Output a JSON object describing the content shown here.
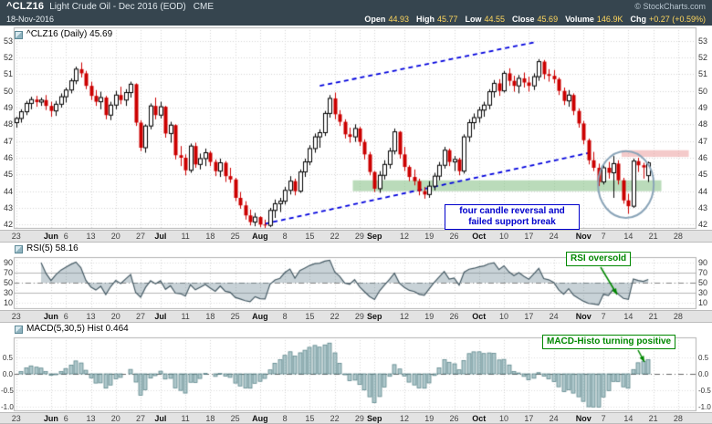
{
  "header": {
    "symbol": "^CLZ16",
    "description": "Light Crude Oil - Dec 2016 (EOD)",
    "exchange": "CME",
    "copyright": "© StockCharts.com",
    "date": "18-Nov-2016",
    "quote": [
      {
        "label": "Open",
        "value": "44.93"
      },
      {
        "label": "High",
        "value": "45.77"
      },
      {
        "label": "Low",
        "value": "44.55"
      },
      {
        "label": "Close",
        "value": "45.69"
      },
      {
        "label": "Volume",
        "value": "146.9K"
      },
      {
        "label": "Chg",
        "value": "+0.27 (+0.59%)"
      }
    ]
  },
  "panels": {
    "price": {
      "label": "^CLZ16 (Daily) 45.69"
    },
    "rsi": {
      "label": "RSI(5) 58.16"
    },
    "macd": {
      "label": "MACD(5,30,5) Hist 0.464"
    }
  },
  "annotations": {
    "reversal": {
      "text": "four candle reversal and failed support break",
      "color": "#0000cc"
    },
    "rsi": {
      "text": "RSI oversold",
      "color": "#008800"
    },
    "macd": {
      "text": "MACD-Histo turning positive",
      "color": "#008800"
    }
  },
  "colors": {
    "header_bg": "#36454f",
    "value_accent": "#ffd75e",
    "candle_up": "#000000",
    "candle_down": "#cc0000",
    "trendline": "#0000dd",
    "support_zone": "rgba(130,190,130,0.55)",
    "resistance_zone": "rgba(233,150,150,0.5)",
    "ellipse": "#8aa4b8",
    "rsi_line": "#455a64",
    "rsi_fill": "rgba(96,125,139,0.35)",
    "macd_bar_fill": "rgba(121,163,168,0.6)",
    "macd_bar_stroke": "#558086",
    "grid": "#d4d4d4"
  },
  "x_axis": {
    "start_date": "23-May-2016",
    "end_date": "28-Nov-2016",
    "ticks": [
      {
        "label": "23",
        "i": 0
      },
      {
        "label": "Jun",
        "i": 7,
        "month": true
      },
      {
        "label": "6",
        "i": 10
      },
      {
        "label": "13",
        "i": 15
      },
      {
        "label": "20",
        "i": 20
      },
      {
        "label": "27",
        "i": 25
      },
      {
        "label": "Jul",
        "i": 29,
        "month": true
      },
      {
        "label": "11",
        "i": 34
      },
      {
        "label": "18",
        "i": 39
      },
      {
        "label": "25",
        "i": 44
      },
      {
        "label": "Aug",
        "i": 49,
        "month": true
      },
      {
        "label": "8",
        "i": 54
      },
      {
        "label": "15",
        "i": 59
      },
      {
        "label": "22",
        "i": 64
      },
      {
        "label": "29",
        "i": 69
      },
      {
        "label": "Sep",
        "i": 72,
        "month": true
      },
      {
        "label": "12",
        "i": 78
      },
      {
        "label": "19",
        "i": 83
      },
      {
        "label": "26",
        "i": 88
      },
      {
        "label": "Oct",
        "i": 93,
        "month": true
      },
      {
        "label": "10",
        "i": 98
      },
      {
        "label": "17",
        "i": 103
      },
      {
        "label": "24",
        "i": 108
      },
      {
        "label": "Nov",
        "i": 114,
        "month": true
      },
      {
        "label": "7",
        "i": 118
      },
      {
        "label": "14",
        "i": 123
      },
      {
        "label": "21",
        "i": 128
      },
      {
        "label": "28",
        "i": 133
      }
    ]
  },
  "chart_data": [
    {
      "type": "candlestick",
      "title": "^CLZ16 (Daily)",
      "last_close": 45.69,
      "ylim": [
        41.8,
        53.8
      ],
      "y_ticks": [
        42,
        43,
        44,
        45,
        46,
        47,
        48,
        49,
        50,
        51,
        52,
        53
      ],
      "legend_position": "top-left",
      "grid": true,
      "ohlc": [
        [
          48.1,
          48.45,
          47.8,
          48.35
        ],
        [
          48.35,
          48.9,
          48.1,
          48.75
        ],
        [
          48.75,
          49.4,
          48.55,
          49.25
        ],
        [
          49.25,
          49.65,
          48.9,
          49.48
        ],
        [
          49.48,
          49.7,
          49.05,
          49.33
        ],
        [
          49.33,
          49.6,
          49.1,
          49.45
        ],
        [
          49.45,
          49.75,
          48.85,
          49.1
        ],
        [
          49.1,
          49.35,
          48.45,
          48.8
        ],
        [
          48.8,
          49.4,
          48.5,
          49.2
        ],
        [
          49.2,
          49.85,
          49.0,
          49.65
        ],
        [
          49.65,
          50.2,
          49.3,
          50.05
        ],
        [
          50.05,
          50.75,
          49.85,
          50.6
        ],
        [
          50.6,
          51.45,
          50.4,
          51.3
        ],
        [
          51.3,
          51.7,
          50.8,
          51.05
        ],
        [
          51.05,
          51.2,
          50.1,
          50.3
        ],
        [
          50.3,
          50.55,
          49.45,
          49.7
        ],
        [
          49.7,
          50.05,
          49.1,
          49.35
        ],
        [
          49.35,
          49.95,
          48.9,
          49.6
        ],
        [
          49.6,
          49.7,
          48.3,
          48.55
        ],
        [
          48.55,
          49.35,
          48.25,
          49.15
        ],
        [
          49.15,
          50.0,
          48.9,
          49.75
        ],
        [
          49.75,
          50.25,
          49.2,
          49.45
        ],
        [
          49.45,
          50.1,
          49.1,
          49.9
        ],
        [
          49.9,
          50.55,
          49.6,
          50.4
        ],
        [
          50.4,
          50.45,
          47.9,
          48.1
        ],
        [
          48.1,
          48.25,
          46.4,
          46.6
        ],
        [
          46.6,
          48.0,
          46.3,
          47.9
        ],
        [
          47.9,
          49.25,
          47.7,
          49.1
        ],
        [
          49.1,
          49.6,
          48.3,
          48.55
        ],
        [
          48.55,
          49.35,
          48.35,
          49.05
        ],
        [
          49.05,
          49.1,
          47.2,
          47.45
        ],
        [
          47.45,
          48.15,
          46.9,
          47.95
        ],
        [
          47.95,
          48.0,
          45.9,
          46.15
        ],
        [
          46.15,
          46.7,
          45.5,
          46.0
        ],
        [
          46.0,
          46.2,
          44.95,
          45.25
        ],
        [
          45.25,
          46.85,
          45.1,
          46.7
        ],
        [
          46.7,
          46.9,
          45.4,
          45.6
        ],
        [
          45.6,
          46.25,
          45.3,
          45.95
        ],
        [
          45.95,
          46.55,
          45.5,
          46.3
        ],
        [
          46.3,
          46.4,
          45.5,
          45.75
        ],
        [
          45.75,
          45.9,
          44.9,
          45.2
        ],
        [
          45.2,
          45.95,
          44.85,
          45.7
        ],
        [
          45.7,
          45.8,
          44.55,
          44.9
        ],
        [
          44.9,
          45.4,
          44.5,
          44.7
        ],
        [
          44.7,
          44.8,
          43.4,
          43.6
        ],
        [
          43.6,
          43.95,
          42.95,
          43.15
        ],
        [
          43.15,
          43.4,
          42.3,
          42.55
        ],
        [
          42.55,
          42.9,
          41.95,
          42.15
        ],
        [
          42.15,
          42.7,
          41.9,
          42.45
        ],
        [
          42.45,
          42.5,
          41.85,
          42.0
        ],
        [
          42.0,
          42.3,
          41.8,
          41.95
        ],
        [
          41.95,
          43.0,
          41.85,
          42.85
        ],
        [
          42.85,
          43.5,
          42.4,
          43.25
        ],
        [
          43.25,
          43.6,
          42.75,
          43.4
        ],
        [
          43.4,
          44.25,
          43.2,
          44.05
        ],
        [
          44.05,
          44.9,
          43.8,
          44.6
        ],
        [
          44.6,
          44.75,
          43.75,
          44.0
        ],
        [
          44.0,
          45.3,
          43.9,
          45.15
        ],
        [
          45.15,
          45.95,
          44.85,
          45.75
        ],
        [
          45.75,
          46.75,
          45.55,
          46.55
        ],
        [
          46.55,
          47.45,
          46.3,
          47.25
        ],
        [
          47.25,
          47.7,
          46.6,
          47.5
        ],
        [
          47.5,
          48.8,
          47.3,
          48.65
        ],
        [
          48.65,
          49.75,
          48.4,
          49.55
        ],
        [
          49.55,
          49.9,
          48.3,
          48.6
        ],
        [
          48.6,
          48.85,
          47.9,
          48.15
        ],
        [
          48.15,
          48.3,
          47.15,
          47.4
        ],
        [
          47.4,
          47.8,
          46.9,
          47.25
        ],
        [
          47.25,
          48.0,
          46.95,
          47.75
        ],
        [
          47.75,
          47.85,
          46.7,
          46.95
        ],
        [
          46.95,
          47.1,
          45.9,
          46.2
        ],
        [
          46.2,
          46.35,
          44.95,
          45.15
        ],
        [
          45.15,
          45.2,
          43.95,
          44.15
        ],
        [
          44.15,
          45.2,
          43.9,
          44.95
        ],
        [
          44.95,
          45.85,
          44.7,
          45.6
        ],
        [
          45.6,
          46.6,
          45.35,
          46.4
        ],
        [
          46.4,
          47.75,
          46.2,
          47.55
        ],
        [
          47.55,
          47.6,
          45.95,
          46.2
        ],
        [
          46.2,
          46.65,
          45.2,
          45.45
        ],
        [
          45.45,
          45.55,
          44.6,
          44.85
        ],
        [
          44.85,
          45.3,
          44.35,
          44.6
        ],
        [
          44.6,
          44.75,
          43.75,
          44.0
        ],
        [
          44.0,
          44.25,
          43.55,
          43.8
        ],
        [
          43.8,
          44.6,
          43.6,
          44.3
        ],
        [
          44.3,
          45.1,
          44.05,
          44.9
        ],
        [
          44.9,
          45.75,
          44.65,
          45.55
        ],
        [
          45.55,
          46.65,
          45.35,
          46.45
        ],
        [
          46.45,
          46.55,
          45.5,
          45.75
        ],
        [
          45.75,
          46.1,
          45.2,
          45.9
        ],
        [
          45.9,
          46.0,
          44.95,
          45.2
        ],
        [
          45.2,
          47.4,
          45.05,
          47.25
        ],
        [
          47.25,
          48.3,
          46.95,
          48.1
        ],
        [
          48.1,
          48.65,
          47.7,
          48.4
        ],
        [
          48.4,
          49.05,
          48.1,
          48.85
        ],
        [
          48.85,
          49.35,
          48.45,
          49.15
        ],
        [
          49.15,
          50.1,
          48.9,
          49.95
        ],
        [
          49.95,
          50.65,
          49.6,
          50.45
        ],
        [
          50.45,
          50.7,
          49.7,
          50.0
        ],
        [
          50.0,
          51.2,
          49.9,
          51.05
        ],
        [
          51.05,
          51.35,
          50.3,
          50.6
        ],
        [
          50.6,
          50.9,
          49.95,
          50.3
        ],
        [
          50.3,
          50.95,
          49.85,
          50.75
        ],
        [
          50.75,
          51.1,
          50.2,
          50.5
        ],
        [
          50.5,
          50.85,
          49.95,
          50.3
        ],
        [
          50.3,
          51.05,
          50.05,
          50.85
        ],
        [
          50.85,
          51.9,
          50.6,
          51.75
        ],
        [
          51.75,
          51.85,
          50.7,
          51.0
        ],
        [
          51.0,
          51.3,
          50.55,
          50.9
        ],
        [
          50.9,
          51.25,
          50.45,
          50.7
        ],
        [
          50.7,
          50.8,
          49.75,
          50.0
        ],
        [
          50.0,
          50.2,
          49.15,
          49.4
        ],
        [
          49.4,
          50.05,
          49.05,
          49.75
        ],
        [
          49.75,
          49.85,
          48.55,
          48.8
        ],
        [
          48.8,
          48.95,
          47.8,
          48.05
        ],
        [
          48.05,
          48.2,
          46.8,
          47.05
        ],
        [
          47.05,
          47.15,
          45.6,
          45.85
        ],
        [
          45.85,
          46.35,
          45.2,
          45.4
        ],
        [
          45.4,
          45.65,
          44.3,
          44.55
        ],
        [
          44.55,
          45.6,
          44.4,
          45.4
        ],
        [
          45.4,
          45.75,
          44.75,
          45.1
        ],
        [
          45.1,
          46.1,
          43.6,
          45.65
        ],
        [
          45.65,
          45.85,
          44.4,
          44.65
        ],
        [
          44.65,
          44.8,
          43.25,
          43.45
        ],
        [
          43.45,
          43.85,
          42.65,
          43.1
        ],
        [
          43.1,
          45.95,
          43.0,
          45.8
        ],
        [
          45.8,
          46.0,
          45.15,
          45.55
        ],
        [
          45.55,
          45.7,
          44.75,
          45.42
        ],
        [
          44.93,
          45.77,
          44.55,
          45.69
        ]
      ],
      "overlays": {
        "upper_trendline": {
          "style": "dashed",
          "color": "#0000dd",
          "from_i": 61,
          "from_price": 50.3,
          "to_i": 104,
          "to_price": 52.9
        },
        "lower_trendline": {
          "style": "dashed",
          "color": "#0000dd",
          "from_i": 50,
          "from_price": 42.05,
          "to_i": 116,
          "to_price": 46.35
        },
        "support_zone": {
          "from_i": 68,
          "to_i": 130,
          "price_low": 44.0,
          "price_high": 44.65
        },
        "resistance_zone": {
          "from_i": 122,
          "to_i": 135.5,
          "price_low": 46.05,
          "price_high": 46.45
        },
        "ellipse": {
          "center_i": 122.5,
          "center_price": 44.4,
          "rx_days": 5.6,
          "ry_price": 2.0
        }
      }
    },
    {
      "type": "line",
      "name": "RSI(5)",
      "period": 5,
      "last_value": 58.16,
      "ylim": [
        0,
        100
      ],
      "y_ticks": [
        90,
        70,
        50,
        30,
        10
      ],
      "ref_lines": [
        30,
        70
      ],
      "mid_line": 50,
      "fill_baseline": 50,
      "derived_from": "chart_data[0].ohlc closes (Wilder RSI, n=5)"
    },
    {
      "type": "bar",
      "name": "MACD(5,30,5) Hist",
      "params": [
        5,
        30,
        5
      ],
      "last_value": 0.464,
      "ylim": [
        -1.1,
        1.1
      ],
      "y_ticks": [
        0.5,
        0.0,
        -0.5,
        -1.0
      ],
      "zero_line": 0,
      "derived_from": "chart_data[0].ohlc closes (EMA5-EMA30, signal EMA5)"
    }
  ]
}
